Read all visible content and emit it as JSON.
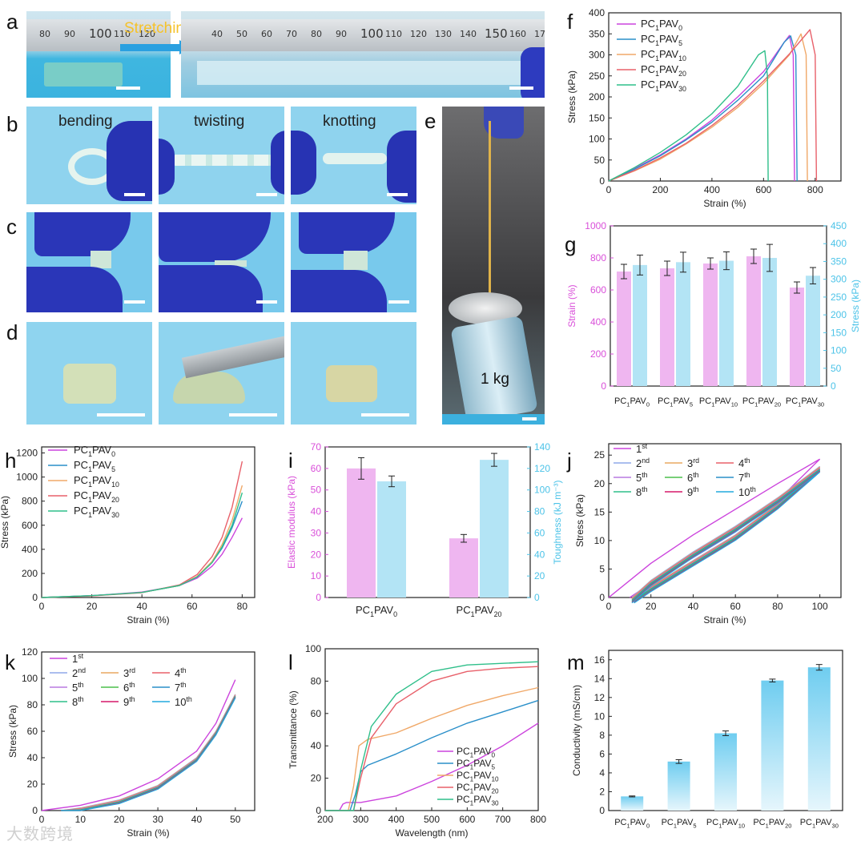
{
  "panels": {
    "a": {
      "letter": "a",
      "caption": "Stretching",
      "ruler_left": [
        "80",
        "90",
        "100",
        "110",
        "120"
      ],
      "ruler_right": [
        "40",
        "50",
        "60",
        "70",
        "80",
        "90",
        "100",
        "110",
        "120",
        "130",
        "140",
        "150",
        "160",
        "170"
      ]
    },
    "b": {
      "letter": "b",
      "captions": [
        "bending",
        "twisting",
        "knotting"
      ]
    },
    "c": {
      "letter": "c"
    },
    "d": {
      "letter": "d"
    },
    "e": {
      "letter": "e",
      "weight_label": "1 kg"
    },
    "f": {
      "letter": "f"
    },
    "g": {
      "letter": "g"
    },
    "h": {
      "letter": "h"
    },
    "i": {
      "letter": "i"
    },
    "j": {
      "letter": "j"
    },
    "k": {
      "letter": "k"
    },
    "l": {
      "letter": "l"
    },
    "m": {
      "letter": "m"
    }
  },
  "watermark": "大数跨境",
  "colors": {
    "magenta": "#cc44dd",
    "blue": "#2a8fc9",
    "orange": "#f0a868",
    "red": "#e8606a",
    "green": "#2fbf8a",
    "pink_bar": "#efb6f0",
    "cyan_bar": "#b3e4f5",
    "cyan_axis": "#4cc3e8",
    "magenta_axis": "#d94fd9"
  },
  "chart_data": [
    {
      "id": "f",
      "type": "line",
      "xlabel": "Strain (%)",
      "ylabel": "Stress (kPa)",
      "xlim": [
        0,
        900
      ],
      "ylim": [
        0,
        400
      ],
      "xticks": [
        "0",
        "200",
        "400",
        "600",
        "800"
      ],
      "yticks": [
        "0",
        "50",
        "100",
        "150",
        "200",
        "250",
        "300",
        "350",
        "400"
      ],
      "legend_position": "top-right",
      "series": [
        {
          "name": "PC1PAV0",
          "base": "PC",
          "sub1": "1",
          "mid": "PAV",
          "sub2": "0",
          "color": "#cc44dd",
          "x": [
            0,
            100,
            200,
            300,
            400,
            500,
            600,
            680,
            700,
            715,
            720
          ],
          "y": [
            0,
            30,
            62,
            100,
            145,
            200,
            260,
            330,
            346,
            300,
            0
          ]
        },
        {
          "name": "PC1PAV5",
          "base": "PC",
          "sub1": "1",
          "mid": "PAV",
          "sub2": "5",
          "color": "#2a8fc9",
          "x": [
            0,
            100,
            200,
            300,
            400,
            500,
            600,
            680,
            705,
            725,
            730
          ],
          "y": [
            0,
            28,
            60,
            98,
            140,
            192,
            250,
            330,
            345,
            300,
            0
          ]
        },
        {
          "name": "PC1PAV10",
          "base": "PC",
          "sub1": "1",
          "mid": "PAV",
          "sub2": "10",
          "color": "#f0a868",
          "x": [
            0,
            100,
            200,
            300,
            400,
            500,
            600,
            700,
            745,
            765,
            770
          ],
          "y": [
            0,
            24,
            52,
            88,
            128,
            175,
            232,
            300,
            350,
            300,
            0
          ]
        },
        {
          "name": "PC1PAV20",
          "base": "PC",
          "sub1": "1",
          "mid": "PAV",
          "sub2": "20",
          "color": "#e8606a",
          "x": [
            0,
            100,
            200,
            300,
            400,
            500,
            600,
            700,
            780,
            800,
            805
          ],
          "y": [
            0,
            25,
            55,
            90,
            132,
            180,
            238,
            302,
            360,
            300,
            0
          ]
        },
        {
          "name": "PC1PAV30",
          "base": "PC",
          "sub1": "1",
          "mid": "PAV",
          "sub2": "30",
          "color": "#2fbf8a",
          "x": [
            0,
            100,
            200,
            300,
            400,
            500,
            580,
            605,
            615,
            618
          ],
          "y": [
            0,
            32,
            68,
            110,
            160,
            225,
            300,
            310,
            250,
            0
          ]
        }
      ]
    },
    {
      "id": "g",
      "type": "bar",
      "ylabel": "Strain (%)",
      "y2label": "Stress (kPa)",
      "ylim": [
        0,
        1000
      ],
      "y2lim": [
        0,
        450
      ],
      "yticks": [
        "0",
        "200",
        "400",
        "600",
        "800",
        "1000"
      ],
      "y2ticks": [
        "0",
        "50",
        "100",
        "150",
        "200",
        "250",
        "300",
        "350",
        "400",
        "450"
      ],
      "categories": [
        {
          "base": "PC",
          "sub1": "1",
          "mid": "PAV",
          "sub2": "0"
        },
        {
          "base": "PC",
          "sub1": "1",
          "mid": "PAV",
          "sub2": "5"
        },
        {
          "base": "PC",
          "sub1": "1",
          "mid": "PAV",
          "sub2": "10"
        },
        {
          "base": "PC",
          "sub1": "1",
          "mid": "PAV",
          "sub2": "20"
        },
        {
          "base": "PC",
          "sub1": "1",
          "mid": "PAV",
          "sub2": "30"
        }
      ],
      "strain": [
        715,
        735,
        765,
        810,
        615
      ],
      "strain_err": [
        45,
        45,
        35,
        45,
        35
      ],
      "stress": [
        340,
        348,
        352,
        360,
        310
      ],
      "stress_err": [
        28,
        28,
        25,
        38,
        23
      ]
    },
    {
      "id": "h",
      "type": "line",
      "xlabel": "Strain (%)",
      "ylabel": "Stress (kPa)",
      "xlim": [
        0,
        85
      ],
      "ylim": [
        0,
        1250
      ],
      "xticks": [
        "0",
        "20",
        "40",
        "60",
        "80"
      ],
      "yticks": [
        "0",
        "200",
        "400",
        "600",
        "800",
        "1000",
        "1200"
      ],
      "legend_position": "top-left",
      "series": [
        {
          "name": "PC1PAV0",
          "base": "PC",
          "sub1": "1",
          "mid": "PAV",
          "sub2": "0",
          "color": "#cc44dd",
          "x": [
            0,
            20,
            40,
            55,
            62,
            68,
            72,
            76,
            80
          ],
          "y": [
            0,
            15,
            45,
            100,
            160,
            260,
            360,
            500,
            660
          ]
        },
        {
          "name": "PC1PAV5",
          "base": "PC",
          "sub1": "1",
          "mid": "PAV",
          "sub2": "5",
          "color": "#2a8fc9",
          "x": [
            0,
            20,
            40,
            55,
            62,
            68,
            72,
            76,
            80
          ],
          "y": [
            0,
            15,
            42,
            100,
            170,
            290,
            410,
            580,
            800
          ]
        },
        {
          "name": "PC1PAV10",
          "base": "PC",
          "sub1": "1",
          "mid": "PAV",
          "sub2": "10",
          "color": "#f0a868",
          "x": [
            0,
            20,
            40,
            55,
            62,
            68,
            72,
            76,
            80
          ],
          "y": [
            0,
            14,
            42,
            100,
            175,
            300,
            440,
            640,
            930
          ]
        },
        {
          "name": "PC1PAV20",
          "base": "PC",
          "sub1": "1",
          "mid": "PAV",
          "sub2": "20",
          "color": "#e8606a",
          "x": [
            0,
            20,
            40,
            55,
            62,
            68,
            72,
            76,
            80
          ],
          "y": [
            0,
            13,
            40,
            105,
            190,
            340,
            500,
            750,
            1130
          ]
        },
        {
          "name": "PC1PAV30",
          "base": "PC",
          "sub1": "1",
          "mid": "PAV",
          "sub2": "30",
          "color": "#2fbf8a",
          "x": [
            0,
            20,
            40,
            55,
            62,
            68,
            72,
            76,
            80
          ],
          "y": [
            0,
            15,
            42,
            100,
            170,
            290,
            420,
            600,
            870
          ]
        }
      ]
    },
    {
      "id": "i",
      "type": "bar",
      "ylabel": "Elastic modulus (kPa)",
      "y2label": "Toughness (kJ m⁻³)",
      "ylim": [
        0,
        70
      ],
      "y2lim": [
        0,
        140
      ],
      "yticks": [
        "0",
        "10",
        "20",
        "30",
        "40",
        "50",
        "60",
        "70"
      ],
      "y2ticks": [
        "0",
        "20",
        "40",
        "60",
        "80",
        "100",
        "120",
        "140"
      ],
      "categories": [
        {
          "base": "PC",
          "sub1": "1",
          "mid": "PAV",
          "sub2": "0"
        },
        {
          "base": "PC",
          "sub1": "1",
          "mid": "PAV",
          "sub2": "20"
        }
      ],
      "modulus": [
        60,
        27.5
      ],
      "modulus_err": [
        5,
        1.8
      ],
      "toughness": [
        108,
        128
      ],
      "toughness_err": [
        5,
        6
      ]
    },
    {
      "id": "j",
      "type": "line",
      "xlabel": "Strain (%)",
      "ylabel": "Stress (kPa)",
      "xlim": [
        0,
        110
      ],
      "ylim": [
        0,
        27
      ],
      "xticks": [
        "0",
        "20",
        "40",
        "60",
        "80",
        "100"
      ],
      "yticks": [
        "0",
        "5",
        "10",
        "15",
        "20",
        "25"
      ],
      "legend": [
        {
          "num": "1",
          "sup": "st",
          "color": "#cc44dd"
        },
        {
          "num": "2",
          "sup": "nd",
          "color": "#8fa8e8"
        },
        {
          "num": "3",
          "sup": "rd",
          "color": "#e8a860"
        },
        {
          "num": "4",
          "sup": "th",
          "color": "#e8606a"
        },
        {
          "num": "5",
          "sup": "th",
          "color": "#b87ae0"
        },
        {
          "num": "6",
          "sup": "th",
          "color": "#4cbf4c"
        },
        {
          "num": "7",
          "sup": "th",
          "color": "#2a8fc9"
        },
        {
          "num": "8",
          "sup": "th",
          "color": "#2fbf8a"
        },
        {
          "num": "9",
          "sup": "th",
          "color": "#d6196a"
        },
        {
          "num": "10",
          "sup": "th",
          "color": "#22aadd"
        }
      ],
      "first_loading": {
        "x": [
          0,
          20,
          40,
          60,
          80,
          100
        ],
        "y": [
          0,
          6,
          11,
          15.5,
          20,
          24.3
        ]
      },
      "first_unloading": {
        "x": [
          100,
          80,
          60,
          40,
          20,
          10
        ],
        "y": [
          24.3,
          17,
          11.5,
          7,
          2.5,
          0
        ]
      },
      "cycle_loading": {
        "x": [
          11,
          20,
          40,
          60,
          80,
          100
        ],
        "y": [
          0,
          3,
          8,
          12.5,
          17.5,
          23
        ]
      },
      "cycle_unloading": {
        "x": [
          100,
          80,
          60,
          40,
          20,
          12
        ],
        "y": [
          23,
          16.5,
          11,
          6.5,
          2,
          0
        ]
      }
    },
    {
      "id": "k",
      "type": "line",
      "xlabel": "Strain (%)",
      "ylabel": "Stress (kPa)",
      "xlim": [
        0,
        55
      ],
      "ylim": [
        0,
        120
      ],
      "xticks": [
        "0",
        "10",
        "20",
        "30",
        "40",
        "50"
      ],
      "yticks": [
        "0",
        "20",
        "40",
        "60",
        "80",
        "100",
        "120"
      ],
      "legend": [
        {
          "num": "1",
          "sup": "st",
          "color": "#cc44dd"
        },
        {
          "num": "2",
          "sup": "nd",
          "color": "#8fa8e8"
        },
        {
          "num": "3",
          "sup": "rd",
          "color": "#e8a860"
        },
        {
          "num": "4",
          "sup": "th",
          "color": "#e8606a"
        },
        {
          "num": "5",
          "sup": "th",
          "color": "#b87ae0"
        },
        {
          "num": "6",
          "sup": "th",
          "color": "#4cbf4c"
        },
        {
          "num": "7",
          "sup": "th",
          "color": "#2a8fc9"
        },
        {
          "num": "8",
          "sup": "th",
          "color": "#2fbf8a"
        },
        {
          "num": "9",
          "sup": "th",
          "color": "#d6196a"
        },
        {
          "num": "10",
          "sup": "th",
          "color": "#22aadd"
        }
      ],
      "first_loading": {
        "x": [
          0,
          10,
          20,
          30,
          40,
          45,
          50
        ],
        "y": [
          0,
          4,
          11,
          24,
          45,
          66,
          99
        ]
      },
      "cycle_loading": {
        "x": [
          5,
          10,
          20,
          30,
          40,
          45,
          50
        ],
        "y": [
          0,
          2,
          8,
          19,
          40,
          60,
          88
        ]
      }
    },
    {
      "id": "l",
      "type": "line",
      "xlabel": "Wavelength (nm)",
      "ylabel": "Transmittance (%)",
      "xlim": [
        200,
        800
      ],
      "ylim": [
        0,
        100
      ],
      "xticks": [
        "200",
        "300",
        "400",
        "500",
        "600",
        "700",
        "800"
      ],
      "yticks": [
        "0",
        "20",
        "40",
        "60",
        "80",
        "100"
      ],
      "legend_position": "bottom-right",
      "series": [
        {
          "name": "PC1PAV0",
          "base": "PC",
          "sub1": "1",
          "mid": "PAV",
          "sub2": "0",
          "color": "#cc44dd",
          "x": [
            200,
            240,
            250,
            260,
            300,
            400,
            500,
            600,
            700,
            800
          ],
          "y": [
            0,
            0,
            4,
            5,
            5,
            9,
            18,
            28,
            40,
            54
          ]
        },
        {
          "name": "PC1PAV5",
          "base": "PC",
          "sub1": "1",
          "mid": "PAV",
          "sub2": "5",
          "color": "#2a8fc9",
          "x": [
            200,
            270,
            285,
            300,
            320,
            400,
            500,
            600,
            700,
            800
          ],
          "y": [
            0,
            0,
            10,
            24,
            28,
            35,
            45,
            54,
            61,
            68
          ]
        },
        {
          "name": "PC1PAV10",
          "base": "PC",
          "sub1": "1",
          "mid": "PAV",
          "sub2": "10",
          "color": "#f0a868",
          "x": [
            200,
            265,
            280,
            295,
            320,
            400,
            500,
            600,
            700,
            800
          ],
          "y": [
            0,
            0,
            15,
            40,
            44,
            48,
            57,
            65,
            71,
            76
          ]
        },
        {
          "name": "PC1PAV20",
          "base": "PC",
          "sub1": "1",
          "mid": "PAV",
          "sub2": "20",
          "color": "#e8606a",
          "x": [
            200,
            280,
            300,
            330,
            400,
            500,
            600,
            700,
            800
          ],
          "y": [
            0,
            0,
            20,
            45,
            66,
            80,
            86,
            88,
            89
          ]
        },
        {
          "name": "PC1PAV30",
          "base": "PC",
          "sub1": "1",
          "mid": "PAV",
          "sub2": "30",
          "color": "#2fbf8a",
          "x": [
            200,
            280,
            300,
            330,
            400,
            500,
            600,
            700,
            800
          ],
          "y": [
            0,
            0,
            25,
            52,
            72,
            86,
            90,
            91,
            92
          ]
        }
      ]
    },
    {
      "id": "m",
      "type": "bar",
      "ylabel": "Conductivity (mS/cm)",
      "ylim": [
        0,
        17
      ],
      "yticks": [
        "0",
        "2",
        "4",
        "6",
        "8",
        "10",
        "12",
        "14",
        "16"
      ],
      "categories": [
        {
          "base": "PC",
          "sub1": "1",
          "mid": "PAV",
          "sub2": "0"
        },
        {
          "base": "PC",
          "sub1": "1",
          "mid": "PAV",
          "sub2": "5"
        },
        {
          "base": "PC",
          "sub1": "1",
          "mid": "PAV",
          "sub2": "10"
        },
        {
          "base": "PC",
          "sub1": "1",
          "mid": "PAV",
          "sub2": "20"
        },
        {
          "base": "PC",
          "sub1": "1",
          "mid": "PAV",
          "sub2": "30"
        }
      ],
      "values": [
        1.5,
        5.2,
        8.2,
        13.8,
        15.2
      ],
      "errors": [
        0.05,
        0.2,
        0.25,
        0.15,
        0.3
      ]
    }
  ]
}
